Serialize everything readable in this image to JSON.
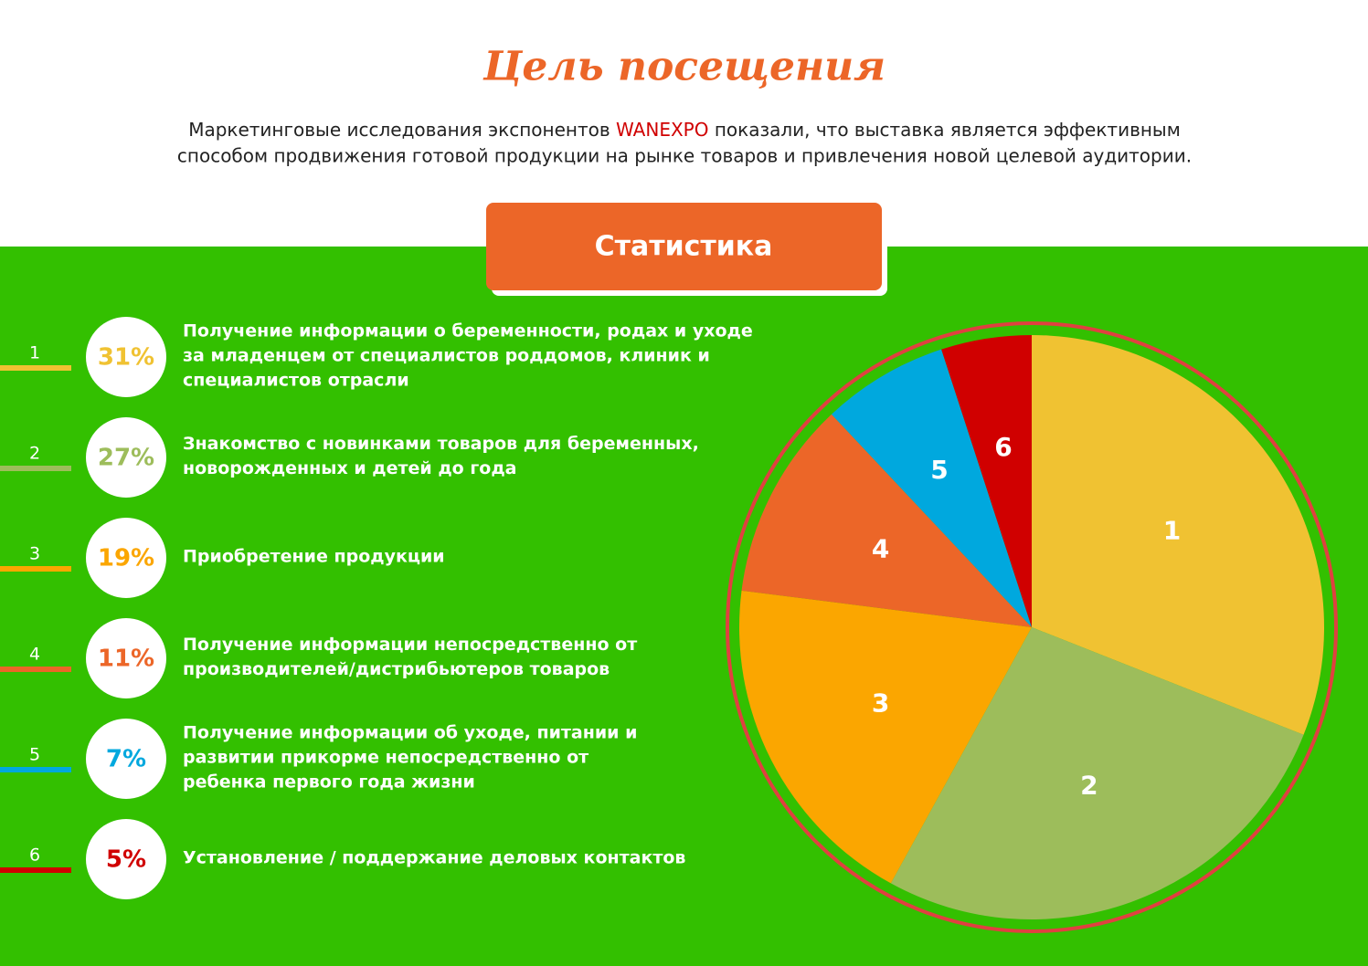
{
  "header": {
    "title": "Цель посещения",
    "intro": [
      "Маркетинговые исследования экспонентов",
      "WANEXPO",
      "показали, что выставка является эффективным",
      "способом продвижения готовой продукции на рынке товаров и привлечения новой целевой аудитории."
    ]
  },
  "button": "Статистика",
  "chart_data": {
    "type": "pie",
    "categories": [
      "1",
      "2",
      "3",
      "4",
      "5",
      "6"
    ],
    "values": [
      31,
      27,
      19,
      11,
      7,
      5
    ],
    "value_labels": [
      "31%",
      "27%",
      "19%",
      "11%",
      "7%",
      "5%"
    ],
    "colors": [
      "#f0c232",
      "#9dbd5b",
      "#fba600",
      "#ec6628",
      "#00a8de",
      "#d00000"
    ],
    "descriptions": [
      [
        "Получение информации о беременности, родах и уходе",
        "за младенцем от специалистов роддомов, клиник и",
        "специалистов отрасли"
      ],
      [
        "Знакомство с новинками товаров для беременных,",
        "новорожденных и детей до года"
      ],
      [
        "Приобретение продукции"
      ],
      [
        "Получение информации непосредственно от",
        "производителей/дистрибьютеров товаров"
      ],
      [
        "Получение информации об уходе, питании и",
        "развитии  прикорме  непосредственно от",
        "ребенка первого года жизни"
      ],
      [
        "Установление / поддержание деловых контактов"
      ]
    ]
  }
}
